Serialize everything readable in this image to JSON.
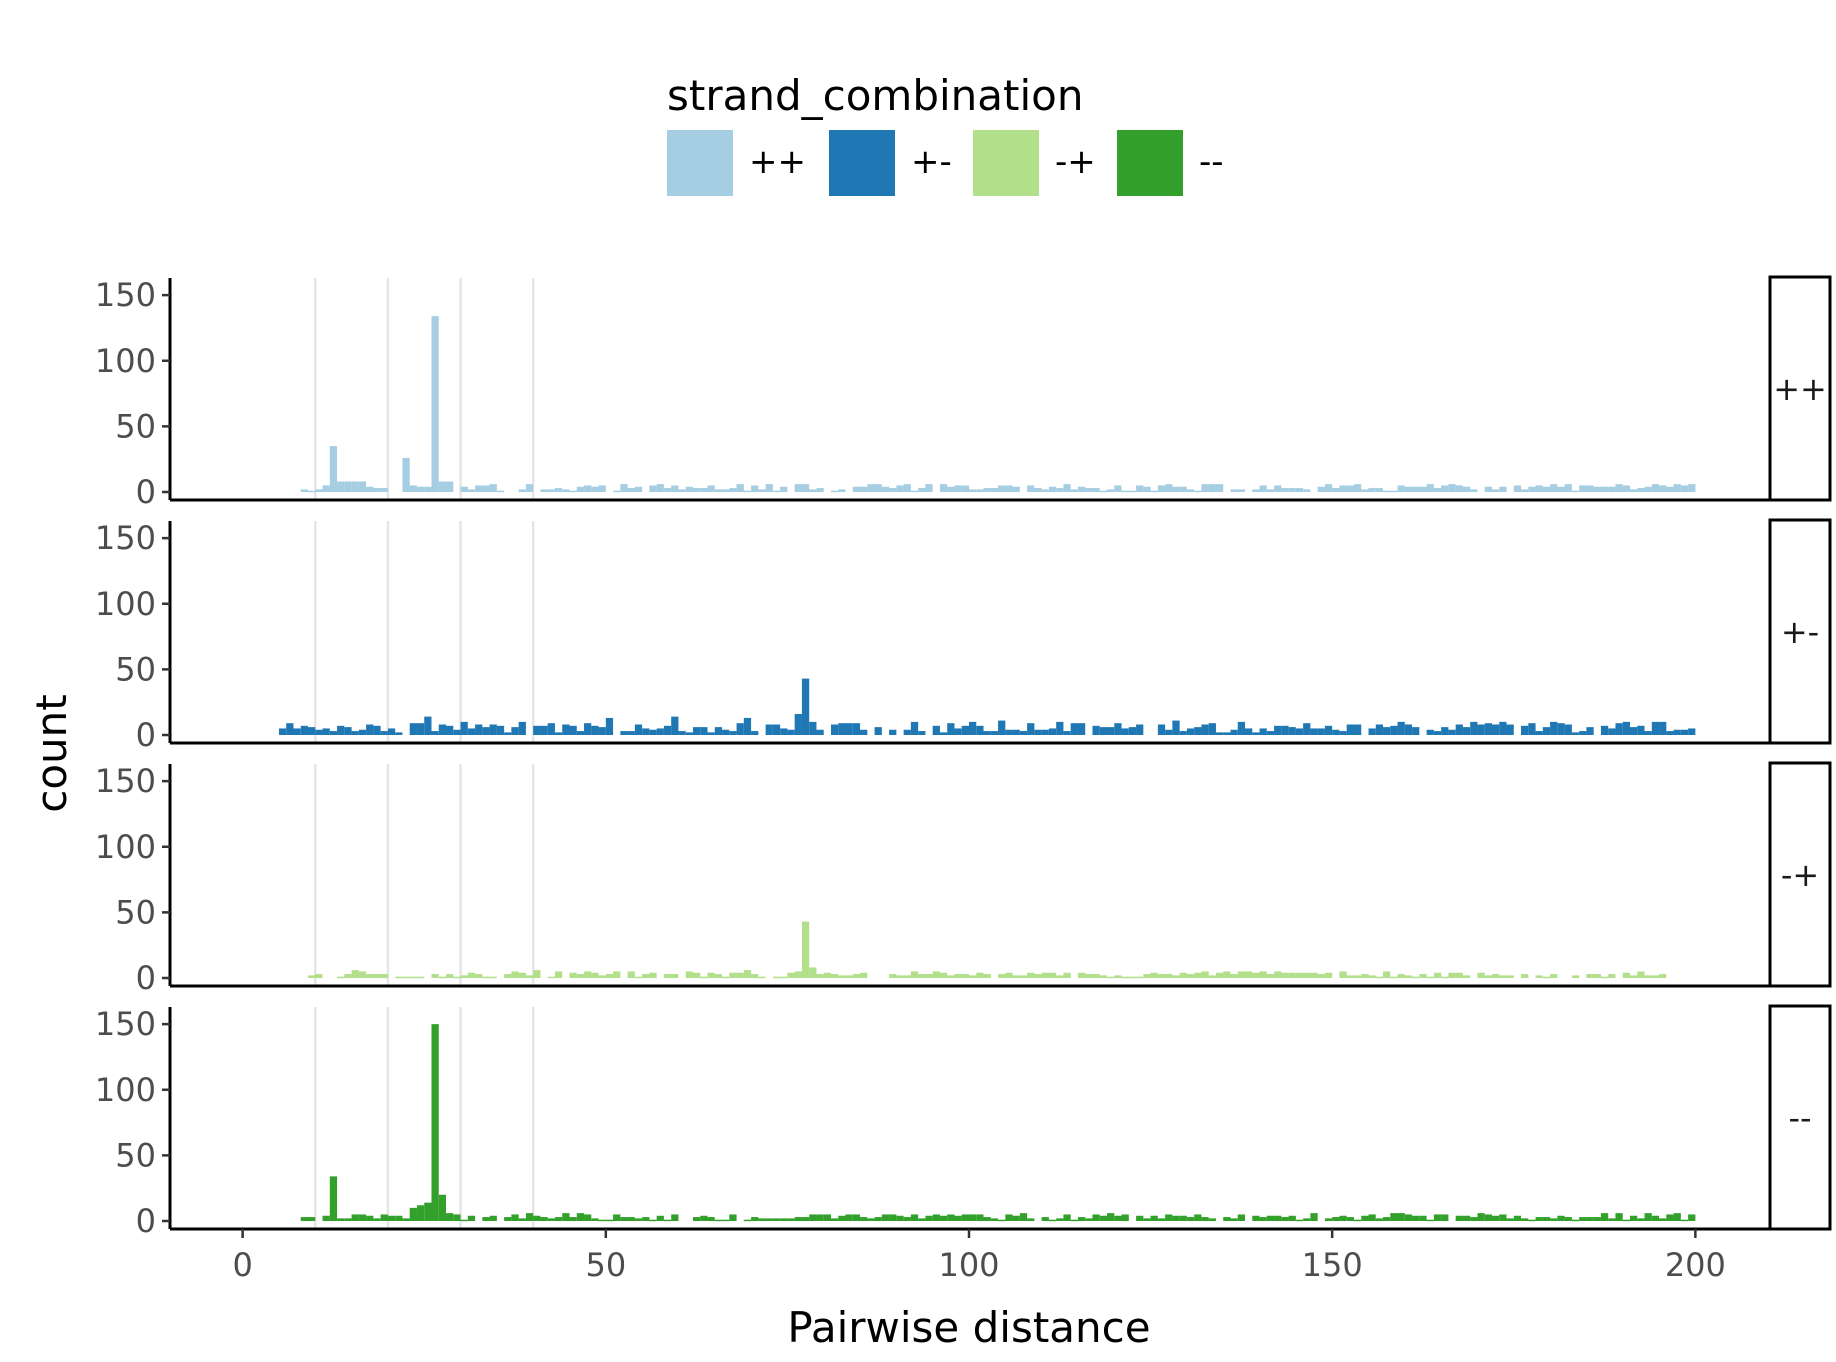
{
  "chart_data": {
    "type": "bar",
    "subtype": "faceted histogram",
    "xlabel": "Pairwise distance",
    "ylabel": "count",
    "xlim": [
      -10,
      210
    ],
    "ylim": [
      0,
      160
    ],
    "x_ticks": [
      0,
      50,
      100,
      150,
      200
    ],
    "y_ticks": [
      0,
      50,
      100,
      150
    ],
    "bin_width": 1,
    "reference_lines_x": [
      10,
      20,
      30,
      40
    ],
    "reference_line_color": "#e5e5e5",
    "legend": {
      "title": "strand_combination",
      "placement": "top",
      "entries": [
        {
          "label": "++",
          "color": "#a6cee3"
        },
        {
          "label": "+-",
          "color": "#1f78b4"
        },
        {
          "label": "-+",
          "color": "#b2df8a"
        },
        {
          "label": "--",
          "color": "#33a02c"
        }
      ]
    },
    "series": [
      {
        "name": "++",
        "color": "#a6cee3",
        "peaks": [
          [
            12,
            35
          ],
          [
            22,
            26
          ],
          [
            26,
            134
          ],
          [
            27,
            8
          ],
          [
            28,
            8
          ],
          [
            13,
            8
          ],
          [
            14,
            8
          ],
          [
            15,
            8
          ],
          [
            16,
            8
          ]
        ],
        "baseline_range": [
          7,
          200
        ],
        "baseline_values": [
          1,
          6
        ]
      },
      {
        "name": "+-",
        "color": "#1f78b4",
        "peaks": [
          [
            77,
            43
          ],
          [
            76,
            16
          ],
          [
            78,
            10
          ],
          [
            25,
            14
          ],
          [
            50,
            13
          ],
          [
            59,
            14
          ],
          [
            69,
            13
          ],
          [
            104,
            11
          ],
          [
            128,
            11
          ]
        ],
        "baseline_range": [
          5,
          200
        ],
        "baseline_values": [
          2,
          10
        ]
      },
      {
        "name": "-+",
        "color": "#b2df8a",
        "peaks": [
          [
            77,
            43
          ],
          [
            78,
            8
          ],
          [
            15,
            6
          ],
          [
            69,
            6
          ],
          [
            40,
            6
          ]
        ],
        "baseline_range": [
          9,
          196
        ],
        "baseline_values": [
          0,
          5
        ]
      },
      {
        "name": "--",
        "color": "#33a02c",
        "peaks": [
          [
            12,
            34
          ],
          [
            26,
            150
          ],
          [
            27,
            20
          ],
          [
            25,
            14
          ],
          [
            24,
            12
          ],
          [
            23,
            10
          ],
          [
            28,
            6
          ]
        ],
        "baseline_range": [
          8,
          200
        ],
        "baseline_values": [
          1,
          6
        ]
      }
    ]
  }
}
